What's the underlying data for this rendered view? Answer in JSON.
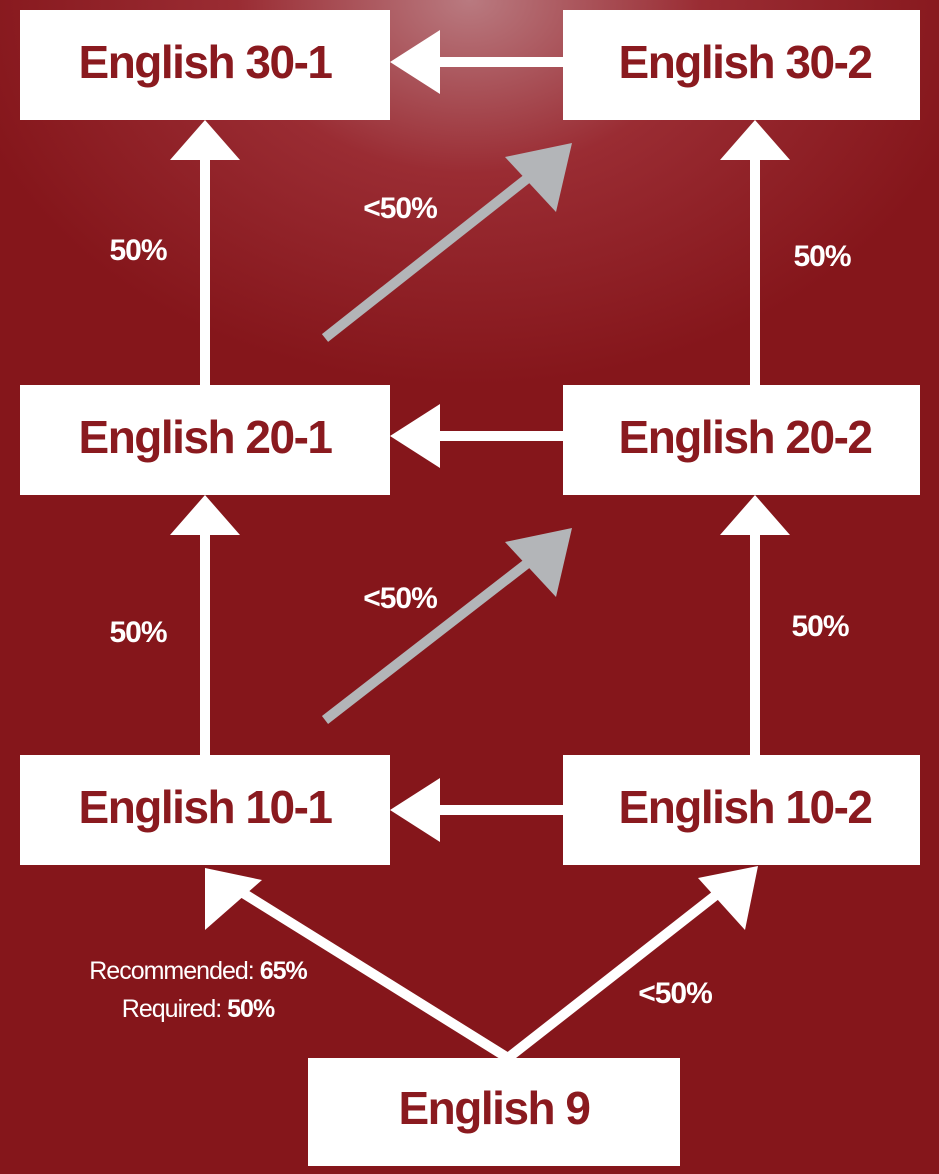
{
  "nodes": [
    {
      "label": "English 30-1"
    },
    {
      "label": "English 30-2"
    },
    {
      "label": "English 20-1"
    },
    {
      "label": "English 20-2"
    },
    {
      "label": "English 10-1"
    },
    {
      "label": "English 10-2"
    },
    {
      "label": "English 9"
    }
  ],
  "edge_labels": [
    "50%",
    "<50%",
    "50%",
    "50%",
    "<50%",
    "50%",
    "<50%"
  ],
  "note": {
    "recommended_label": "Recommended:",
    "recommended_value": "65%",
    "required_label": "Required:",
    "required_value": "50%"
  }
}
